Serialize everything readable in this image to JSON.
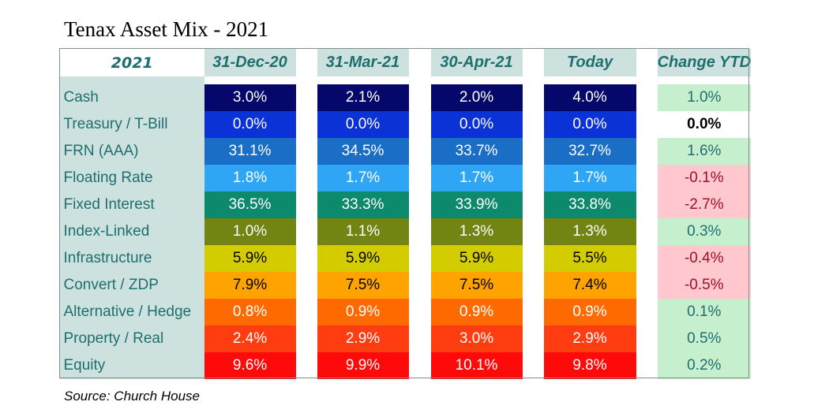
{
  "title": "Tenax Asset Mix - 2021",
  "source": "Source: Church House",
  "chart_data": {
    "type": "table",
    "title": "Tenax Asset Mix - 2021",
    "corner": "2021",
    "columns": [
      "31-Dec-20",
      "31-Mar-21",
      "30-Apr-21",
      "Today",
      "Change YTD"
    ],
    "rows": [
      {
        "label": "Cash",
        "values": [
          "3.0%",
          "2.1%",
          "2.0%",
          "4.0%"
        ],
        "change": "1.0%",
        "sign": "pos",
        "color": "#05086a",
        "text": "#ffffff"
      },
      {
        "label": "Treasury / T-Bill",
        "values": [
          "0.0%",
          "0.0%",
          "0.0%",
          "0.0%"
        ],
        "change": "0.0%",
        "sign": "zero",
        "color": "#0b32d6",
        "text": "#ffffff"
      },
      {
        "label": "FRN (AAA)",
        "values": [
          "31.1%",
          "34.5%",
          "33.7%",
          "32.7%"
        ],
        "change": "1.6%",
        "sign": "pos",
        "color": "#1a6ec6",
        "text": "#ffffff"
      },
      {
        "label": "Floating Rate",
        "values": [
          "1.8%",
          "1.7%",
          "1.7%",
          "1.7%"
        ],
        "change": "-0.1%",
        "sign": "neg",
        "color": "#2ea6f5",
        "text": "#ffffff"
      },
      {
        "label": "Fixed Interest",
        "values": [
          "36.5%",
          "33.3%",
          "33.9%",
          "33.8%"
        ],
        "change": "-2.7%",
        "sign": "neg",
        "color": "#0d8a6c",
        "text": "#ffffff"
      },
      {
        "label": "Index-Linked",
        "values": [
          "1.0%",
          "1.1%",
          "1.3%",
          "1.3%"
        ],
        "change": "0.3%",
        "sign": "pos",
        "color": "#728512",
        "text": "#ffffff"
      },
      {
        "label": "Infrastructure",
        "values": [
          "5.9%",
          "5.9%",
          "5.9%",
          "5.5%"
        ],
        "change": "-0.4%",
        "sign": "neg",
        "color": "#d2cc00",
        "text": "#000000"
      },
      {
        "label": "Convert / ZDP",
        "values": [
          "7.9%",
          "7.5%",
          "7.5%",
          "7.4%"
        ],
        "change": "-0.5%",
        "sign": "neg",
        "color": "#ffa300",
        "text": "#000000"
      },
      {
        "label": "Alternative / Hedge",
        "values": [
          "0.8%",
          "0.9%",
          "0.9%",
          "0.9%"
        ],
        "change": "0.1%",
        "sign": "pos",
        "color": "#ff6a00",
        "text": "#ffffff"
      },
      {
        "label": "Property / Real",
        "values": [
          "2.4%",
          "2.9%",
          "3.0%",
          "2.9%"
        ],
        "change": "0.5%",
        "sign": "pos",
        "color": "#ff3d10",
        "text": "#ffffff"
      },
      {
        "label": "Equity",
        "values": [
          "9.6%",
          "9.9%",
          "10.1%",
          "9.8%"
        ],
        "change": "0.2%",
        "sign": "pos",
        "color": "#ff0a0a",
        "text": "#ffffff"
      }
    ]
  }
}
